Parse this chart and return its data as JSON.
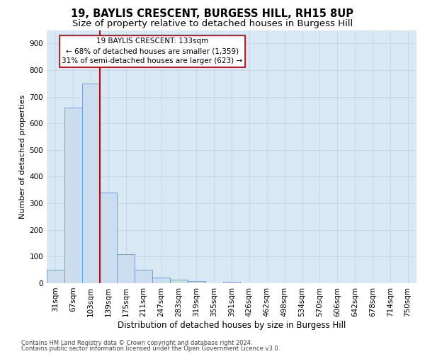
{
  "title_line1": "19, BAYLIS CRESCENT, BURGESS HILL, RH15 8UP",
  "title_line2": "Size of property relative to detached houses in Burgess Hill",
  "xlabel": "Distribution of detached houses by size in Burgess Hill",
  "ylabel": "Number of detached properties",
  "footer_line1": "Contains HM Land Registry data © Crown copyright and database right 2024.",
  "footer_line2": "Contains public sector information licensed under the Open Government Licence v3.0.",
  "bar_labels": [
    "31sqm",
    "67sqm",
    "103sqm",
    "139sqm",
    "175sqm",
    "211sqm",
    "247sqm",
    "283sqm",
    "319sqm",
    "355sqm",
    "391sqm",
    "426sqm",
    "462sqm",
    "498sqm",
    "534sqm",
    "570sqm",
    "606sqm",
    "642sqm",
    "678sqm",
    "714sqm",
    "750sqm"
  ],
  "bar_values": [
    50,
    660,
    750,
    340,
    108,
    50,
    22,
    13,
    8,
    0,
    5,
    0,
    0,
    0,
    0,
    0,
    0,
    0,
    0,
    0,
    0
  ],
  "bar_color": "#ccddf0",
  "bar_edge_color": "#6699cc",
  "vline_index": 2.5,
  "vline_color": "#cc0000",
  "annotation_text": "19 BAYLIS CRESCENT: 133sqm\n← 68% of detached houses are smaller (1,359)\n31% of semi-detached houses are larger (623) →",
  "annotation_box_color": "#ffffff",
  "annotation_box_edge": "#cc0000",
  "ylim": [
    0,
    950
  ],
  "yticks": [
    0,
    100,
    200,
    300,
    400,
    500,
    600,
    700,
    800,
    900
  ],
  "grid_color": "#c8d8e8",
  "bg_color": "#d8e8f5",
  "title_fontsize": 10.5,
  "subtitle_fontsize": 9.5,
  "xlabel_fontsize": 8.5,
  "ylabel_fontsize": 8,
  "tick_fontsize": 7.5,
  "ann_fontsize": 7.5,
  "footer_fontsize": 6
}
